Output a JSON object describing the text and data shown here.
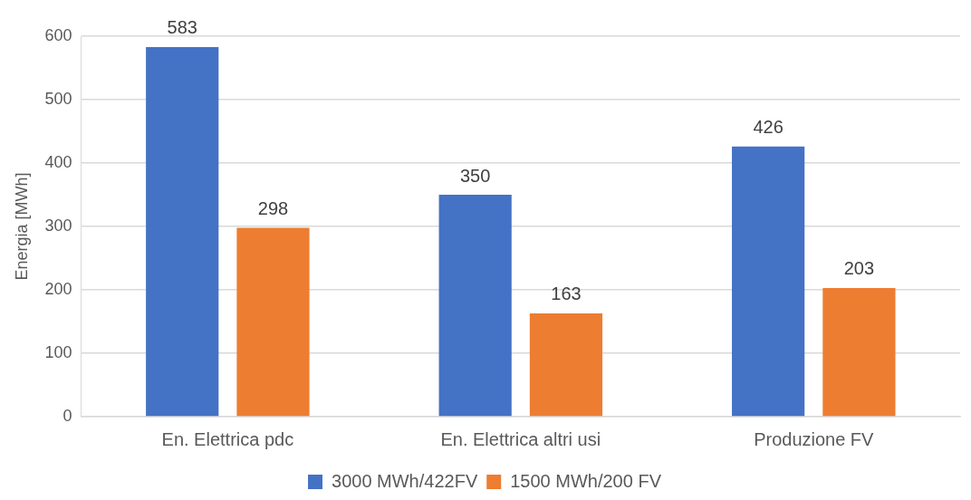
{
  "chart_data": {
    "type": "bar",
    "ylabel": "Energia [MWh]",
    "categories": [
      "En. Elettrica pdc",
      "En. Elettrica altri usi",
      "Produzione FV"
    ],
    "series": [
      {
        "name": "3000 MWh/422FV",
        "color": "#4472c4",
        "values": [
          583,
          350,
          426
        ]
      },
      {
        "name": "1500 MWh/200 FV",
        "color": "#ed7d31",
        "values": [
          298,
          163,
          203
        ]
      }
    ],
    "ylim": [
      0,
      600
    ],
    "yticks": [
      0,
      100,
      200,
      300,
      400,
      500,
      600
    ],
    "grid": "y",
    "legend": "bottom",
    "data_labels": true
  }
}
